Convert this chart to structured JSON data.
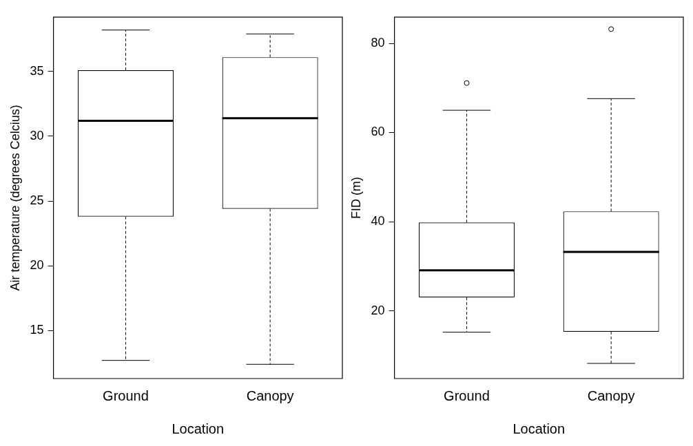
{
  "chart_data": [
    {
      "type": "box",
      "ylabel": "Air temperature (degrees Celcius)",
      "xlabel": "Location",
      "categories": [
        "Ground",
        "Canopy"
      ],
      "ylim": [
        11.3,
        39.2
      ],
      "yticks": [
        15,
        20,
        25,
        30,
        35
      ],
      "boxes": [
        {
          "low": 12.7,
          "q1": 23.8,
          "median": 31.2,
          "q3": 35.1,
          "high": 38.2
        },
        {
          "low": 12.4,
          "q1": 24.4,
          "median": 31.4,
          "q3": 36.1,
          "high": 37.9
        }
      ]
    },
    {
      "type": "box",
      "ylabel": "FID (m)",
      "xlabel": "Location",
      "categories": [
        "Ground",
        "Canopy"
      ],
      "ylim": [
        4.8,
        85.9
      ],
      "yticks": [
        20,
        40,
        60,
        80
      ],
      "boxes": [
        {
          "low": 15.2,
          "q1": 23,
          "median": 29.1,
          "q3": 39.8,
          "high": 65,
          "outliers": [
            71.1
          ]
        },
        {
          "low": 8.2,
          "q1": 15.3,
          "median": 33.2,
          "q3": 42.3,
          "high": 67.6,
          "outliers": [
            83.2
          ]
        }
      ]
    }
  ]
}
